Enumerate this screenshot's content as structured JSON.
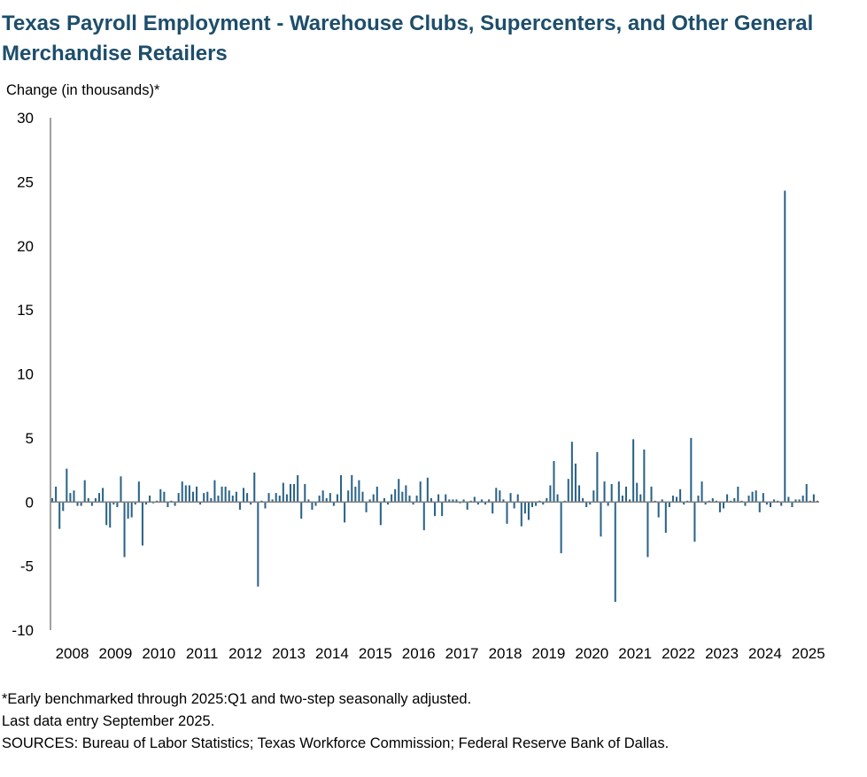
{
  "chart_data": {
    "type": "bar",
    "title": "Texas Payroll Employment - Warehouse Clubs, Supercenters, and Other General Merchandise Retailers",
    "ylabel": "Change (in thousands)*",
    "xlabel": "",
    "ylim": [
      -10,
      30
    ],
    "yticks": [
      -10,
      -5,
      0,
      5,
      10,
      15,
      20,
      25,
      30
    ],
    "xticks": [
      "2008",
      "2009",
      "2010",
      "2011",
      "2012",
      "2013",
      "2014",
      "2015",
      "2016",
      "2017",
      "2018",
      "2019",
      "2020",
      "2021",
      "2022",
      "2023",
      "2024",
      "2025"
    ],
    "x_start": "2008-01",
    "frequency": "monthly",
    "grid": false,
    "color": "#2a6387",
    "series": [
      {
        "values": [
          0.3,
          1.2,
          -2.1,
          -0.7,
          2.6,
          0.7,
          0.9,
          -0.3,
          -0.3,
          1.7,
          0.3,
          -0.3,
          0.3,
          0.7,
          1.1,
          -1.8,
          -2,
          -0.2,
          -0.4,
          2,
          -4.3,
          -1.3,
          -1.2,
          -0.2,
          1.6,
          -3.4,
          -0.2,
          0.5,
          -0.1,
          0.1,
          1,
          0.8,
          -0.4,
          0.1,
          -0.3,
          0.7,
          1.6,
          1.3,
          1.3,
          0.8,
          1.2,
          -0.2,
          0.7,
          0.8,
          0.3,
          1.7,
          0.5,
          1.2,
          1.2,
          0.9,
          0.5,
          0.8,
          -0.6,
          1.1,
          0.7,
          -0.2,
          2.3,
          -6.6,
          0.1,
          -0.5,
          0.7,
          0.2,
          0.7,
          0.5,
          1.5,
          0.6,
          1.4,
          1.4,
          2.1,
          -1.3,
          1.4,
          0.2,
          -0.6,
          -0.3,
          0.5,
          0.9,
          0.3,
          0.7,
          -0.3,
          0.6,
          2.1,
          -1.6,
          0.9,
          2.1,
          1.2,
          1.7,
          0.8,
          -0.8,
          0.2,
          0.6,
          1.2,
          -1.8,
          0.3,
          -0.2,
          0.6,
          1,
          1.8,
          0.8,
          1.3,
          0.5,
          -0.2,
          0.5,
          1.6,
          -2.2,
          1.9,
          0.3,
          -1.1,
          0.6,
          -1.1,
          0.6,
          0.2,
          0.2,
          0.2,
          -0.1,
          0.2,
          -0.6,
          0.1,
          0.4,
          -0.2,
          0.2,
          -0.2,
          0.2,
          -0.9,
          1.1,
          0.9,
          0.2,
          -1.7,
          0.7,
          -0.5,
          0.6,
          -1.9,
          -0.9,
          -1.4,
          -0.4,
          -0.3,
          0.1,
          -0.2,
          0.3,
          1.3,
          3.2,
          0.6,
          -4,
          0.1,
          1.8,
          4.7,
          3,
          1.3,
          0.3,
          -0.4,
          -0.2,
          0.9,
          3.9,
          -2.7,
          1.6,
          -0.3,
          1.4,
          -7.8,
          1.6,
          0.5,
          1.2,
          0.2,
          4.9,
          1.5,
          0.6,
          4.1,
          -4.3,
          1.2,
          0.1,
          -1.2,
          0.2,
          -2.4,
          -0.4,
          0.5,
          0.4,
          1,
          -0.2,
          0.1,
          5,
          -3.1,
          0.5,
          1.6,
          -0.2,
          0.1,
          0.3,
          0.1,
          -0.8,
          -0.5,
          0.6,
          0.1,
          0.3,
          1.2,
          0.1,
          -0.3,
          0.5,
          0.8,
          0.9,
          -0.8,
          0.7,
          -0.2,
          -0.4,
          0.2,
          0.1,
          -0.3,
          24.3,
          0.4,
          -0.4,
          0.2,
          0.2,
          0.5,
          1.4,
          0.1,
          0.6,
          0.1
        ]
      }
    ]
  },
  "footnotes": {
    "note": "*Early benchmarked through 2025:Q1 and two-step seasonally adjusted.",
    "last_entry": "Last data entry September 2025.",
    "sources": "SOURCES: Bureau of Labor Statistics; Texas Workforce Commission; Federal Reserve Bank of Dallas."
  }
}
